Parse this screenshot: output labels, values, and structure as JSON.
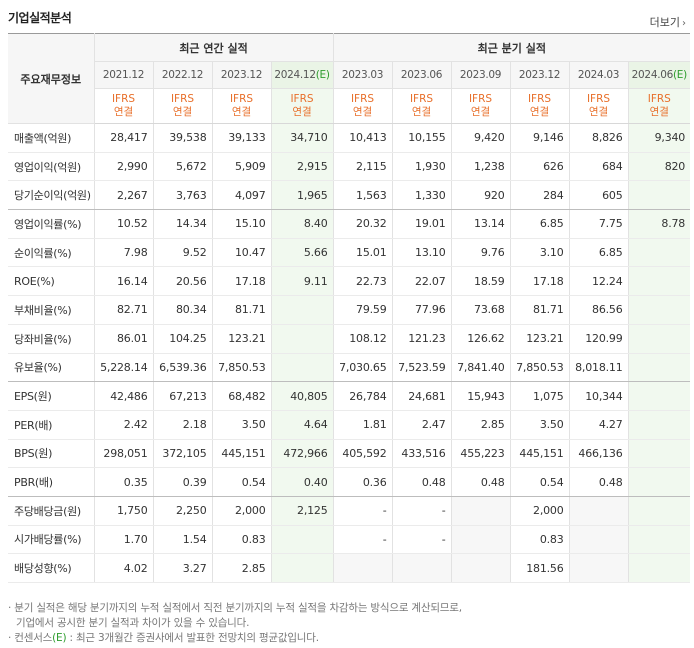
{
  "header": {
    "title": "기업실적분석",
    "more_label": "더보기"
  },
  "table": {
    "row_header_label": "주요재무정보",
    "groups": {
      "annual": "최근 연간 실적",
      "quarterly": "최근 분기 실적"
    },
    "periods": [
      {
        "label": "2021.12",
        "est": ""
      },
      {
        "label": "2022.12",
        "est": ""
      },
      {
        "label": "2023.12",
        "est": ""
      },
      {
        "label": "2024.12",
        "est": "(E)"
      },
      {
        "label": "2023.03",
        "est": ""
      },
      {
        "label": "2023.06",
        "est": ""
      },
      {
        "label": "2023.09",
        "est": ""
      },
      {
        "label": "2023.12",
        "est": ""
      },
      {
        "label": "2024.03",
        "est": ""
      },
      {
        "label": "2024.06",
        "est": "(E)"
      }
    ],
    "basis": {
      "line1": "IFRS",
      "line2": "연결"
    },
    "rows": [
      {
        "label": "매출액(억원)",
        "values": [
          "28,417",
          "39,538",
          "39,133",
          "34,710",
          "10,413",
          "10,155",
          "9,420",
          "9,146",
          "8,826",
          "9,340"
        ]
      },
      {
        "label": "영업이익(억원)",
        "values": [
          "2,990",
          "5,672",
          "5,909",
          "2,915",
          "2,115",
          "1,930",
          "1,238",
          "626",
          "684",
          "820"
        ]
      },
      {
        "label": "당기순이익(억원)",
        "values": [
          "2,267",
          "3,763",
          "4,097",
          "1,965",
          "1,563",
          "1,330",
          "920",
          "284",
          "605",
          ""
        ]
      },
      {
        "label": "영업이익률(%)",
        "values": [
          "10.52",
          "14.34",
          "15.10",
          "8.40",
          "20.32",
          "19.01",
          "13.14",
          "6.85",
          "7.75",
          "8.78"
        ]
      },
      {
        "label": "순이익률(%)",
        "values": [
          "7.98",
          "9.52",
          "10.47",
          "5.66",
          "15.01",
          "13.10",
          "9.76",
          "3.10",
          "6.85",
          ""
        ]
      },
      {
        "label": "ROE(%)",
        "values": [
          "16.14",
          "20.56",
          "17.18",
          "9.11",
          "22.73",
          "22.07",
          "18.59",
          "17.18",
          "12.24",
          ""
        ]
      },
      {
        "label": "부채비율(%)",
        "values": [
          "82.71",
          "80.34",
          "81.71",
          "",
          "79.59",
          "77.96",
          "73.68",
          "81.71",
          "86.56",
          ""
        ]
      },
      {
        "label": "당좌비율(%)",
        "values": [
          "86.01",
          "104.25",
          "123.21",
          "",
          "108.12",
          "121.23",
          "126.62",
          "123.21",
          "120.99",
          ""
        ]
      },
      {
        "label": "유보율(%)",
        "values": [
          "5,228.14",
          "6,539.36",
          "7,850.53",
          "",
          "7,030.65",
          "7,523.59",
          "7,841.40",
          "7,850.53",
          "8,018.11",
          ""
        ]
      },
      {
        "label": "EPS(원)",
        "values": [
          "42,486",
          "67,213",
          "68,482",
          "40,805",
          "26,784",
          "24,681",
          "15,943",
          "1,075",
          "10,344",
          ""
        ]
      },
      {
        "label": "PER(배)",
        "values": [
          "2.42",
          "2.18",
          "3.50",
          "4.64",
          "1.81",
          "2.47",
          "2.85",
          "3.50",
          "4.27",
          ""
        ]
      },
      {
        "label": "BPS(원)",
        "values": [
          "298,051",
          "372,105",
          "445,151",
          "472,966",
          "405,592",
          "433,516",
          "455,223",
          "445,151",
          "466,136",
          ""
        ]
      },
      {
        "label": "PBR(배)",
        "values": [
          "0.35",
          "0.39",
          "0.54",
          "0.40",
          "0.36",
          "0.48",
          "0.48",
          "0.54",
          "0.48",
          ""
        ]
      },
      {
        "label": "주당배당금(원)",
        "values": [
          "1,750",
          "2,250",
          "2,000",
          "2,125",
          "-",
          "-",
          "",
          "2,000",
          "",
          ""
        ]
      },
      {
        "label": "시가배당률(%)",
        "values": [
          "1.70",
          "1.54",
          "0.83",
          "",
          "-",
          "-",
          "",
          "0.83",
          "",
          ""
        ]
      },
      {
        "label": "배당성향(%)",
        "values": [
          "4.02",
          "3.27",
          "2.85",
          "",
          "",
          "",
          "",
          "181.56",
          "",
          ""
        ]
      }
    ]
  },
  "notes": {
    "line1": "분기 실적은 해당 분기까지의 누적 실적에서 직전 분기까지의 누적 실적을 차감하는 방식으로 계산되므로,",
    "line2": "기업에서 공시한 분기 실적과 차이가 있을 수 있습니다.",
    "line3_prefix": "컨센서스",
    "line3_mark": "(E)",
    "line3_suffix": ": 최근 3개월간 증권사에서 발표한 전망치의 평균값입니다."
  },
  "colors": {
    "ifrs_text": "#e86f2a",
    "estimate_mark": "#2e9d2e",
    "estimate_bg": "#f1f9ef"
  }
}
